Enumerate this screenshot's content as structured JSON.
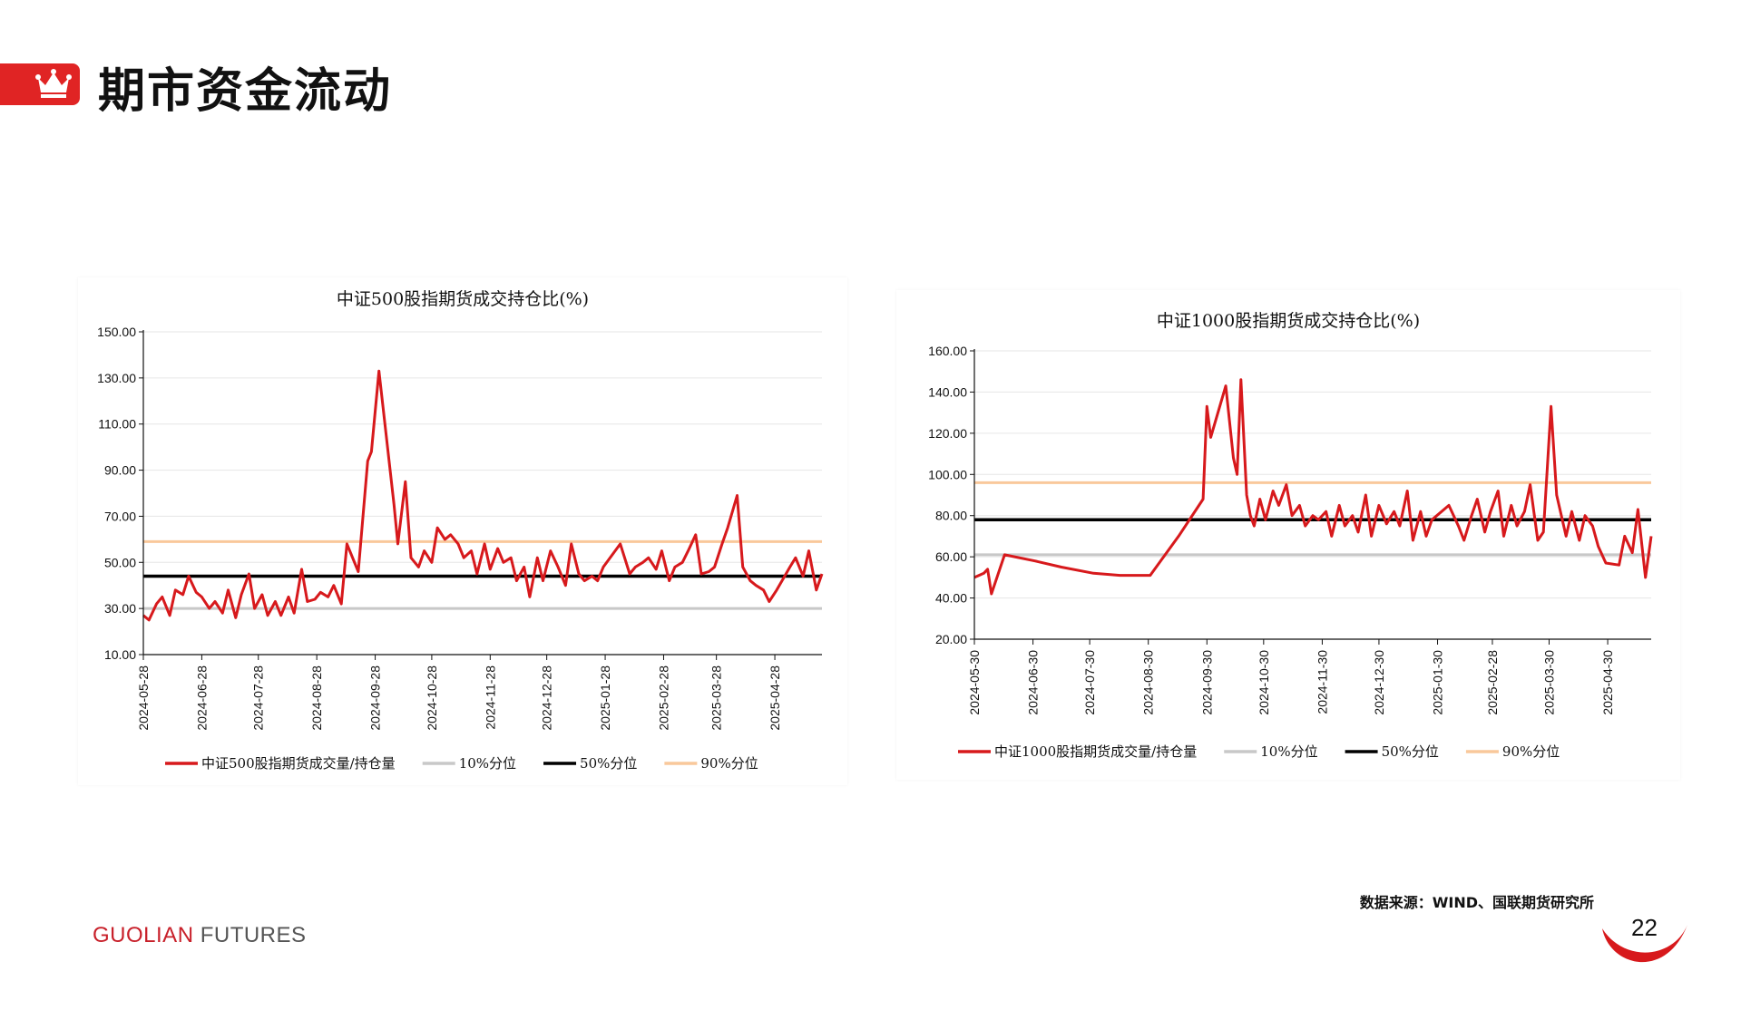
{
  "header": {
    "title": "期市资金流动",
    "icon": "crown-icon",
    "accent": "#e02424"
  },
  "charts_text": {
    "a": {
      "title": "中证500股指期货成交持仓比(%)",
      "legend": [
        "中证500股指期货成交量/持仓量",
        "10%分位",
        "50%分位",
        "90%分位"
      ],
      "y_ticks": [
        "150.00",
        "130.00",
        "110.00",
        "90.00",
        "70.00",
        "50.00",
        "30.00",
        "10.00"
      ],
      "x_ticks": [
        "2024-05-28",
        "2024-06-28",
        "2024-07-28",
        "2024-08-28",
        "2024-09-28",
        "2024-10-28",
        "2024-11-28",
        "2024-12-28",
        "2025-01-28",
        "2025-02-28",
        "2025-03-28",
        "2025-04-28"
      ]
    },
    "b": {
      "title": "中证1000股指期货成交持仓比(%)",
      "legend": [
        "中证1000股指期货成交量/持仓量",
        "10%分位",
        "50%分位",
        "90%分位"
      ],
      "y_ticks": [
        "160.00",
        "140.00",
        "120.00",
        "100.00",
        "80.00",
        "60.00",
        "40.00",
        "20.00"
      ],
      "x_ticks": [
        "2024-05-30",
        "2024-06-30",
        "2024-07-30",
        "2024-08-30",
        "2024-09-30",
        "2024-10-30",
        "2024-11-30",
        "2024-12-30",
        "2025-01-30",
        "2025-02-28",
        "2025-03-30",
        "2025-04-30"
      ]
    }
  },
  "chart_data": [
    {
      "type": "line",
      "title": "中证500股指期货成交持仓比(%)",
      "xlabel": "",
      "ylabel": "",
      "ylim": [
        10,
        150
      ],
      "xlim": [
        "2024-05-28",
        "2025-05-23"
      ],
      "grid": true,
      "legend_position": "bottom",
      "colors": {
        "series": "#d7191c",
        "p10": "#c8c8c8",
        "p50": "#000000",
        "p90": "#f9c89b"
      },
      "series": [
        {
          "name": "中证500股指期货成交量/持仓量",
          "x": [
            "2024-05-28",
            "2024-05-31",
            "2024-06-04",
            "2024-06-07",
            "2024-06-11",
            "2024-06-14",
            "2024-06-18",
            "2024-06-21",
            "2024-06-25",
            "2024-06-28",
            "2024-07-02",
            "2024-07-05",
            "2024-07-09",
            "2024-07-12",
            "2024-07-16",
            "2024-07-19",
            "2024-07-23",
            "2024-07-26",
            "2024-07-30",
            "2024-08-02",
            "2024-08-06",
            "2024-08-09",
            "2024-08-13",
            "2024-08-16",
            "2024-08-20",
            "2024-08-23",
            "2024-08-27",
            "2024-08-30",
            "2024-09-03",
            "2024-09-06",
            "2024-09-10",
            "2024-09-13",
            "2024-09-19",
            "2024-09-24",
            "2024-09-26",
            "2024-09-30",
            "2024-10-08",
            "2024-10-10",
            "2024-10-14",
            "2024-10-17",
            "2024-10-21",
            "2024-10-24",
            "2024-10-28",
            "2024-10-31",
            "2024-11-04",
            "2024-11-07",
            "2024-11-11",
            "2024-11-14",
            "2024-11-18",
            "2024-11-21",
            "2024-11-25",
            "2024-11-28",
            "2024-12-02",
            "2024-12-05",
            "2024-12-09",
            "2024-12-12",
            "2024-12-16",
            "2024-12-19",
            "2024-12-23",
            "2024-12-26",
            "2024-12-30",
            "2025-01-03",
            "2025-01-07",
            "2025-01-10",
            "2025-01-14",
            "2025-01-17",
            "2025-01-21",
            "2025-01-24",
            "2025-01-27",
            "2025-02-05",
            "2025-02-10",
            "2025-02-13",
            "2025-02-17",
            "2025-02-20",
            "2025-02-24",
            "2025-02-27",
            "2025-03-03",
            "2025-03-06",
            "2025-03-10",
            "2025-03-13",
            "2025-03-17",
            "2025-03-20",
            "2025-03-24",
            "2025-03-27",
            "2025-03-31",
            "2025-04-03",
            "2025-04-08",
            "2025-04-11",
            "2025-04-15",
            "2025-04-18",
            "2025-04-22",
            "2025-04-25",
            "2025-04-29",
            "2025-05-06",
            "2025-05-09",
            "2025-05-13",
            "2025-05-16",
            "2025-05-20",
            "2025-05-23"
          ],
          "values": [
            27,
            25,
            32,
            35,
            27,
            38,
            36,
            44,
            37,
            35,
            30,
            33,
            28,
            38,
            26,
            36,
            45,
            30,
            36,
            27,
            33,
            27,
            35,
            28,
            47,
            33,
            34,
            37,
            35,
            40,
            32,
            58,
            46,
            94,
            98,
            133,
            75,
            58,
            85,
            52,
            48,
            55,
            50,
            65,
            60,
            62,
            58,
            52,
            55,
            45,
            58,
            47,
            56,
            50,
            52,
            42,
            48,
            35,
            52,
            42,
            55,
            48,
            40,
            58,
            45,
            42,
            44,
            42,
            48,
            58,
            45,
            48,
            50,
            52,
            47,
            55,
            42,
            48,
            50,
            55,
            62,
            45,
            46,
            48,
            58,
            65,
            79,
            48,
            42,
            40,
            38,
            33,
            38,
            48,
            52,
            44,
            55,
            38,
            45
          ]
        },
        {
          "name": "10%分位",
          "value": 30
        },
        {
          "name": "50%分位",
          "value": 44
        },
        {
          "name": "90%分位",
          "value": 59
        }
      ]
    },
    {
      "type": "line",
      "title": "中证1000股指期货成交持仓比(%)",
      "xlabel": "",
      "ylabel": "",
      "ylim": [
        20,
        160
      ],
      "xlim": [
        "2024-05-30",
        "2025-05-23"
      ],
      "grid": true,
      "legend_position": "bottom",
      "colors": {
        "series": "#d7191c",
        "p10": "#c8c8c8",
        "p50": "#000000",
        "p90": "#f9c89b"
      },
      "series": [
        {
          "name": "中证1000股指期货成交量/持仓量",
          "x": [
            "2024-05-30",
            "2024-06-04",
            "2024-06-06",
            "2024-06-08",
            "2024-06-15",
            "2024-07-01",
            "2024-07-15",
            "2024-08-01",
            "2024-08-15",
            "2024-08-31",
            "2024-09-15",
            "2024-09-28",
            "2024-09-30",
            "2024-10-02",
            "2024-10-10",
            "2024-10-14",
            "2024-10-16",
            "2024-10-18",
            "2024-10-21",
            "2024-10-23",
            "2024-10-25",
            "2024-10-28",
            "2024-10-31",
            "2024-11-04",
            "2024-11-07",
            "2024-11-11",
            "2024-11-14",
            "2024-11-18",
            "2024-11-21",
            "2024-11-25",
            "2024-11-28",
            "2024-12-02",
            "2024-12-05",
            "2024-12-09",
            "2024-12-12",
            "2024-12-16",
            "2024-12-19",
            "2024-12-23",
            "2024-12-26",
            "2024-12-30",
            "2025-01-03",
            "2025-01-07",
            "2025-01-10",
            "2025-01-14",
            "2025-01-17",
            "2025-01-21",
            "2025-01-24",
            "2025-01-27",
            "2025-02-05",
            "2025-02-10",
            "2025-02-13",
            "2025-02-17",
            "2025-02-20",
            "2025-02-24",
            "2025-02-27",
            "2025-03-03",
            "2025-03-06",
            "2025-03-10",
            "2025-03-13",
            "2025-03-17",
            "2025-03-20",
            "2025-03-24",
            "2025-03-27",
            "2025-03-31",
            "2025-04-03",
            "2025-04-08",
            "2025-04-11",
            "2025-04-15",
            "2025-04-18",
            "2025-04-22",
            "2025-04-25",
            "2025-04-29",
            "2025-05-06",
            "2025-05-09",
            "2025-05-13",
            "2025-05-16",
            "2025-05-20",
            "2025-05-23"
          ],
          "values": [
            50,
            52,
            54,
            42,
            61,
            58,
            55,
            52,
            51,
            51,
            70,
            88,
            133,
            118,
            143,
            108,
            100,
            146,
            90,
            80,
            75,
            88,
            78,
            92,
            85,
            95,
            80,
            85,
            75,
            80,
            78,
            82,
            70,
            85,
            75,
            80,
            72,
            90,
            70,
            85,
            76,
            82,
            75,
            92,
            68,
            82,
            70,
            78,
            85,
            75,
            68,
            80,
            88,
            72,
            82,
            92,
            70,
            85,
            75,
            82,
            95,
            68,
            72,
            133,
            90,
            70,
            82,
            68,
            80,
            75,
            65,
            57,
            56,
            70,
            62,
            83,
            50,
            70
          ]
        },
        {
          "name": "10%分位",
          "value": 61
        },
        {
          "name": "50%分位",
          "value": 78
        },
        {
          "name": "90%分位",
          "value": 96
        }
      ]
    }
  ],
  "footer": {
    "source": "数据来源：WIND、国联期货研究所",
    "brand_a": "GUOLIAN",
    "brand_b": " FUTURES",
    "page": "22"
  }
}
